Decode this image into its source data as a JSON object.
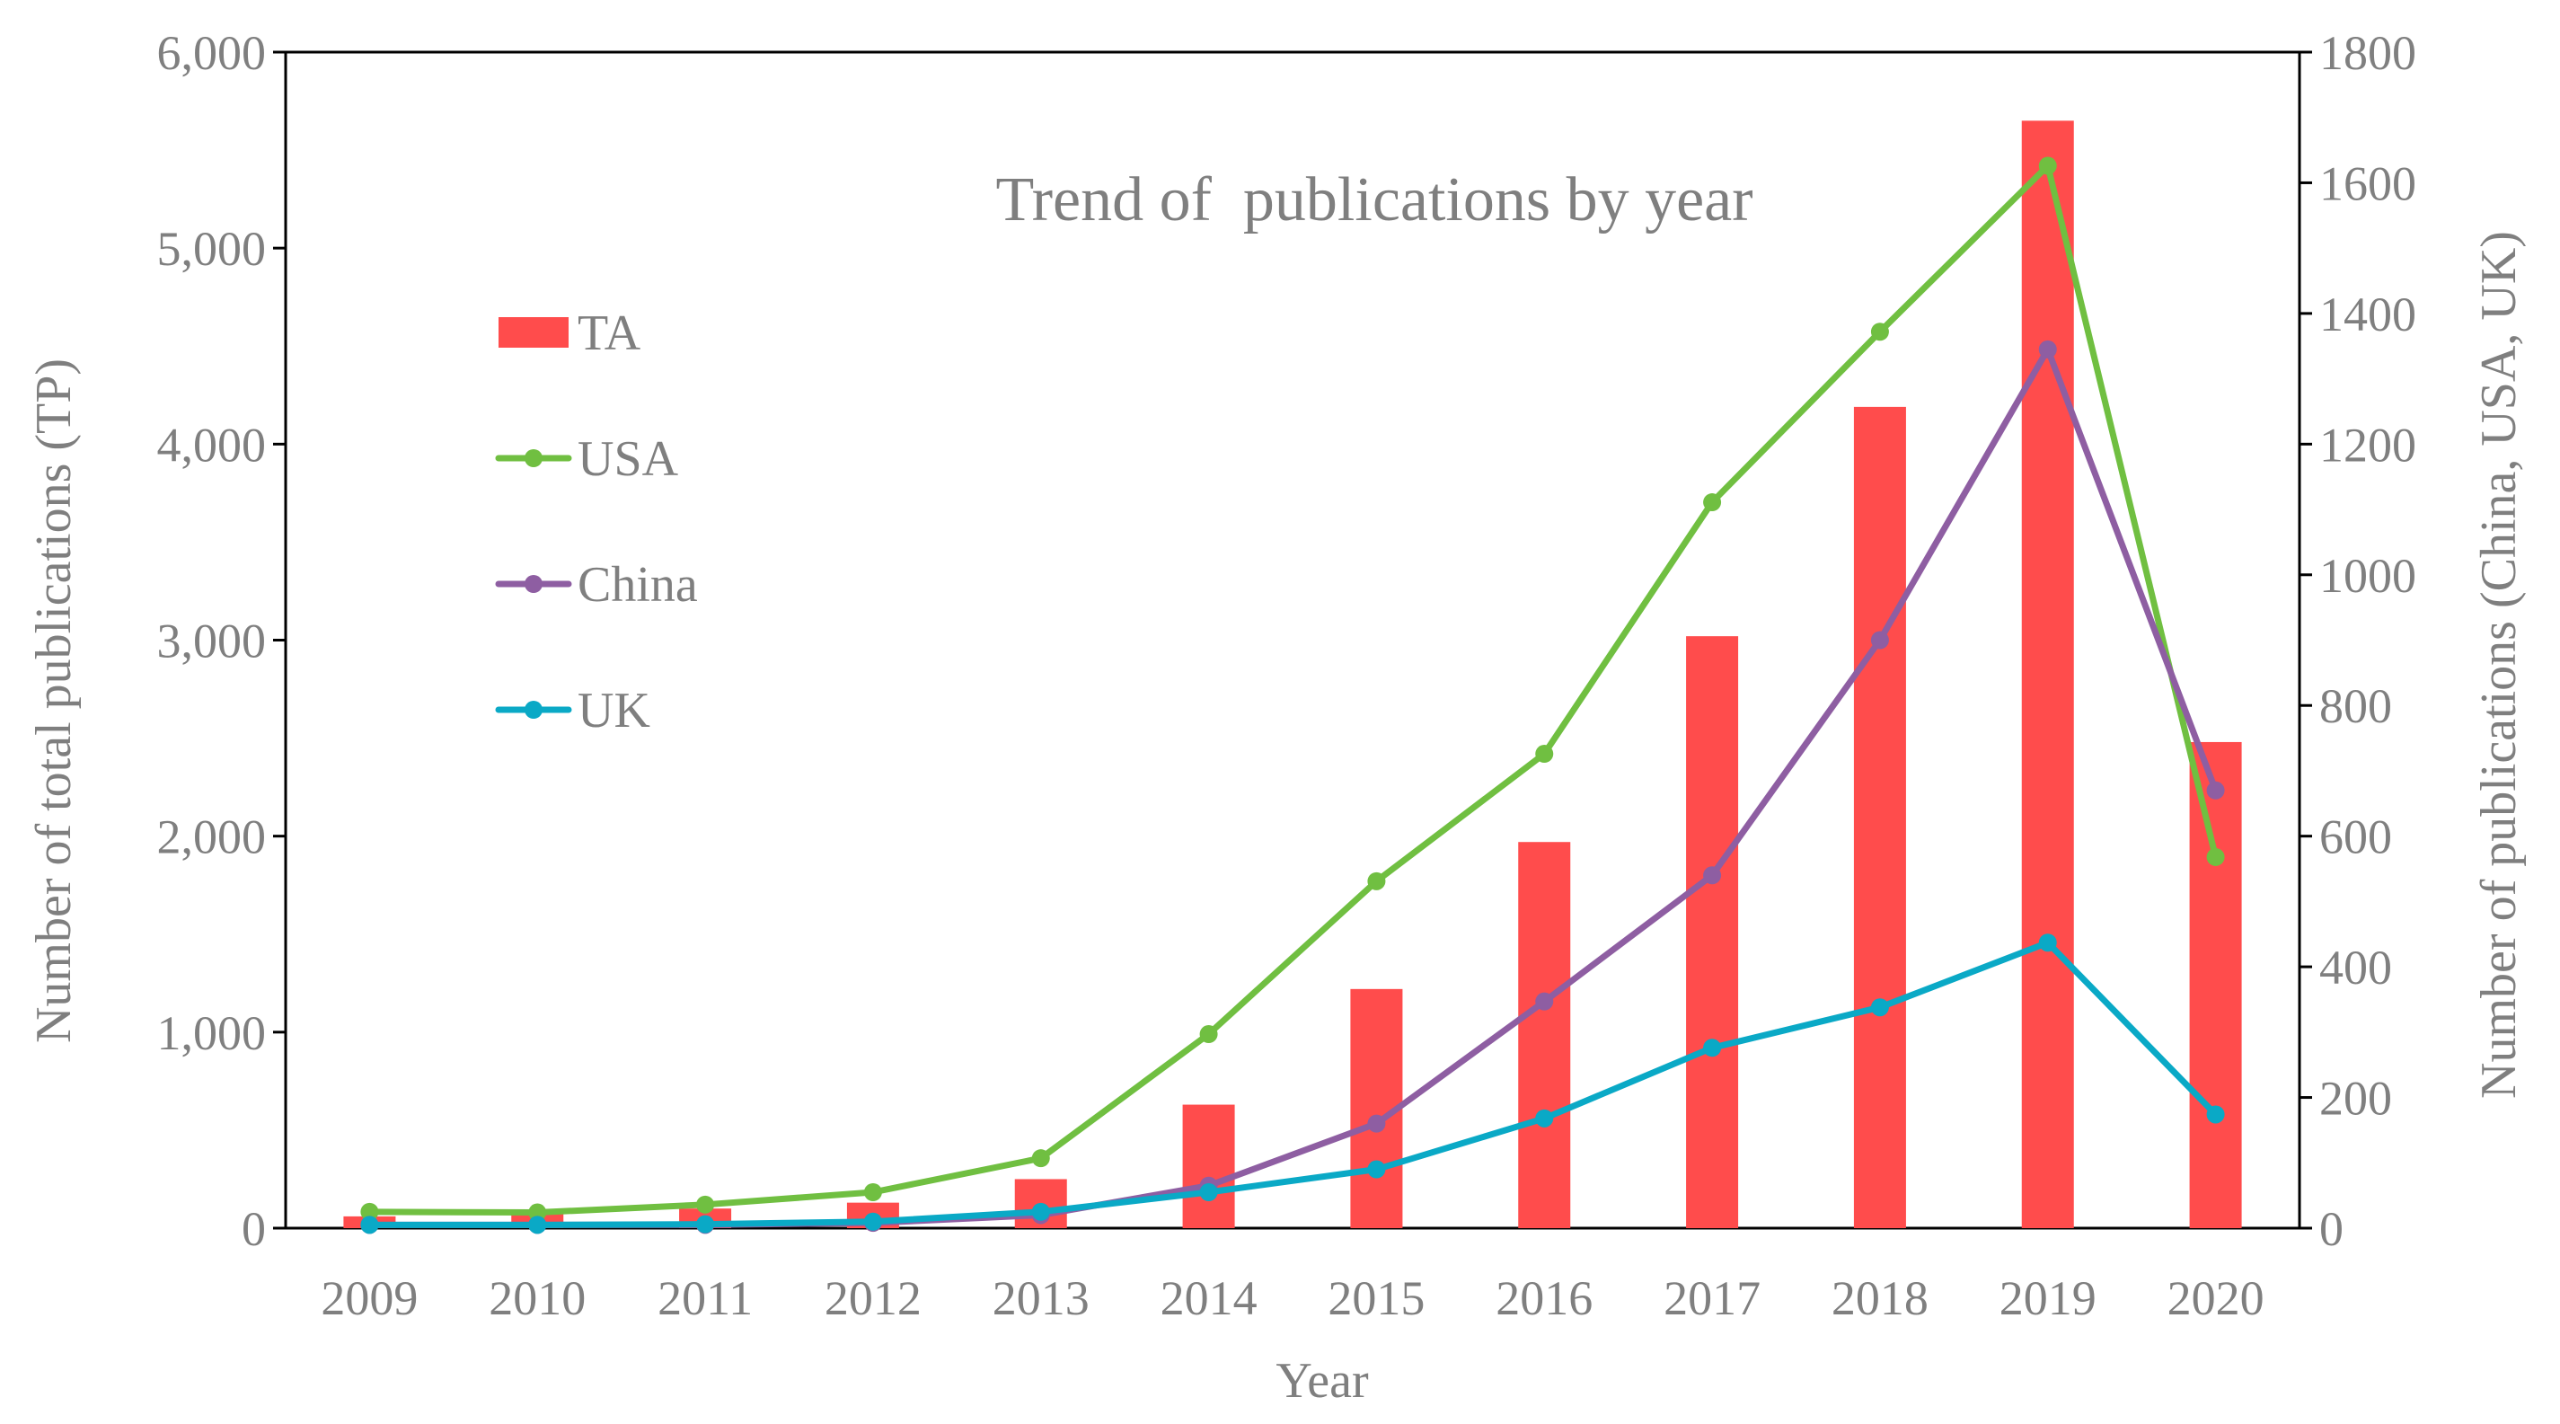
{
  "chart_data": {
    "type": "bar",
    "title": "Trend of  publications by year",
    "xlabel": "Year",
    "ylabel_left": "Number of total publications (TP)",
    "ylabel_right": "Number of publications (China, USA, UK)",
    "categories": [
      "2009",
      "2010",
      "2011",
      "2012",
      "2013",
      "2014",
      "2015",
      "2016",
      "2017",
      "2018",
      "2019",
      "2020"
    ],
    "ylim_left": [
      0,
      6000
    ],
    "ylim_right": [
      0,
      1800
    ],
    "yticks_left": [
      "0",
      "1,000",
      "2,000",
      "3,000",
      "4,000",
      "5,000",
      "6,000"
    ],
    "yticks_right": [
      "0",
      "200",
      "400",
      "600",
      "800",
      "1000",
      "1200",
      "1400",
      "1600",
      "1800"
    ],
    "grid": false,
    "legend_position": "left, upper",
    "series": [
      {
        "name": "TA",
        "type": "bar",
        "axis": "left",
        "color": "#ff4c4c",
        "values": [
          60,
          80,
          100,
          130,
          250,
          630,
          1220,
          1970,
          3020,
          4190,
          5650,
          2480
        ]
      },
      {
        "name": "USA",
        "type": "line",
        "axis": "right",
        "color": "#70bf41",
        "values": [
          25,
          24,
          36,
          55,
          107,
          297,
          531,
          726,
          1111,
          1372,
          1626,
          568
        ]
      },
      {
        "name": "China",
        "type": "line",
        "axis": "right",
        "color": "#8e5ea2",
        "values": [
          5,
          5,
          5,
          8,
          20,
          65,
          160,
          347,
          540,
          900,
          1345,
          670
        ]
      },
      {
        "name": "UK",
        "type": "line",
        "axis": "right",
        "color": "#0aa9c6",
        "values": [
          5,
          5,
          6,
          10,
          25,
          55,
          90,
          168,
          276,
          338,
          437,
          174
        ]
      }
    ]
  }
}
